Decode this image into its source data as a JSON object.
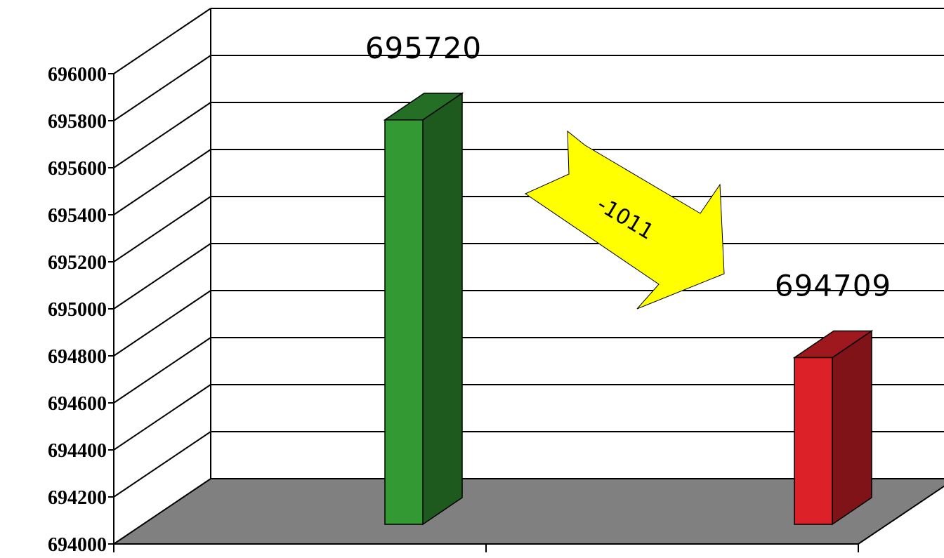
{
  "chart_data": {
    "type": "bar",
    "title": "",
    "xlabel": "",
    "ylabel": "",
    "categories": [
      "",
      ""
    ],
    "values": [
      695720,
      694709
    ],
    "data_labels": [
      "695720",
      "694709"
    ],
    "bar_colors": [
      "#339933",
      "#dd2128"
    ],
    "ylim": [
      694000,
      696000
    ],
    "yticks": [
      {
        "value": 694000,
        "label": "694000"
      },
      {
        "value": 694200,
        "label": "694200"
      },
      {
        "value": 694400,
        "label": "694400"
      },
      {
        "value": 694600,
        "label": "694600"
      },
      {
        "value": 694800,
        "label": "694800"
      },
      {
        "value": 695000,
        "label": "695000"
      },
      {
        "value": 695200,
        "label": "695200"
      },
      {
        "value": 695400,
        "label": "695400"
      },
      {
        "value": 695600,
        "label": "695600"
      },
      {
        "value": 695800,
        "label": "695800"
      },
      {
        "value": 696000,
        "label": "696000"
      }
    ],
    "grid": true,
    "style": "3d",
    "floor_color": "#808080",
    "annotation": {
      "text": "-1011",
      "shape": "arrow",
      "color": "#ffff00"
    }
  }
}
